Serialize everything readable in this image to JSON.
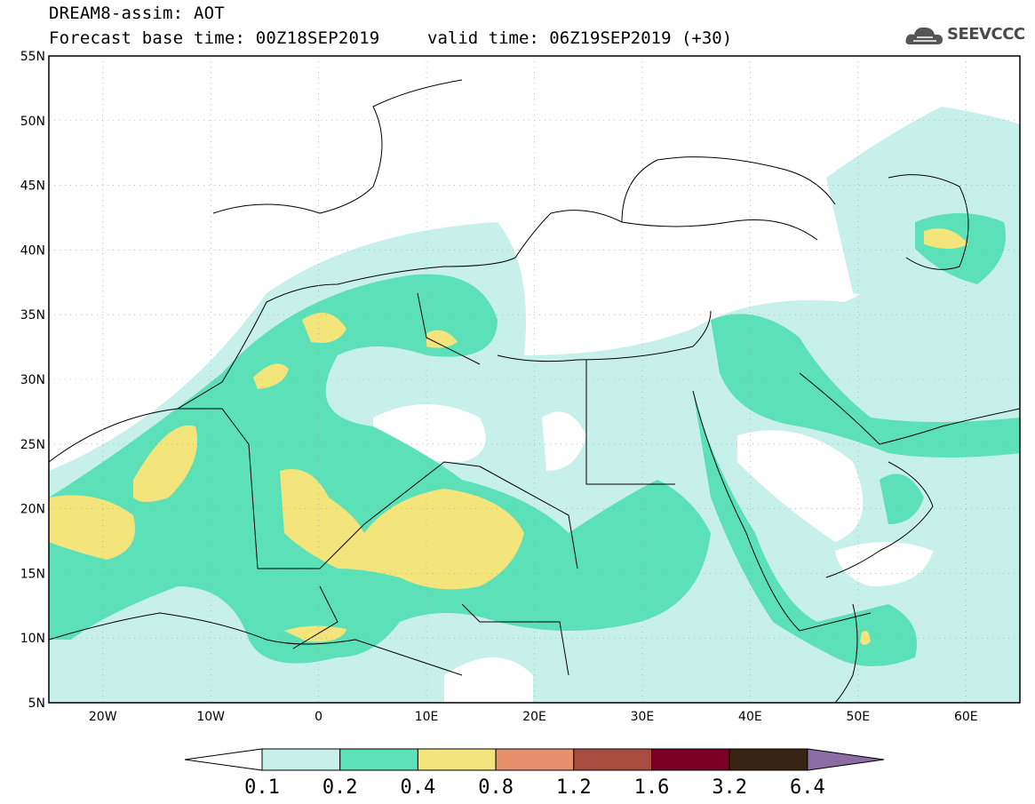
{
  "header": {
    "title": "DREAM8-assim: AOT",
    "base_time": "Forecast base time: 00Z18SEP2019",
    "valid_time": "valid time: 06Z19SEP2019 (+30)",
    "logo_text": "SEEVCCC",
    "logo_icon": "cloud-icon"
  },
  "map": {
    "lon_range": [
      -25,
      65
    ],
    "lat_range": [
      5,
      55
    ],
    "lat_labels": [
      "55N",
      "50N",
      "45N",
      "40N",
      "35N",
      "30N",
      "25N",
      "20N",
      "15N",
      "10N",
      "5N"
    ],
    "lon_labels": [
      "20W",
      "10W",
      "0",
      "10E",
      "20E",
      "30E",
      "40E",
      "50E",
      "60E"
    ]
  },
  "colorbar": {
    "levels": [
      "0.1",
      "0.2",
      "0.4",
      "0.8",
      "1.2",
      "1.6",
      "3.2",
      "6.4"
    ],
    "colors": [
      "#c8f0ea",
      "#5ce0b8",
      "#f4e47c",
      "#e8906c",
      "#a84c40",
      "#7a0026",
      "#3a2414",
      "#8c6ca4"
    ]
  }
}
